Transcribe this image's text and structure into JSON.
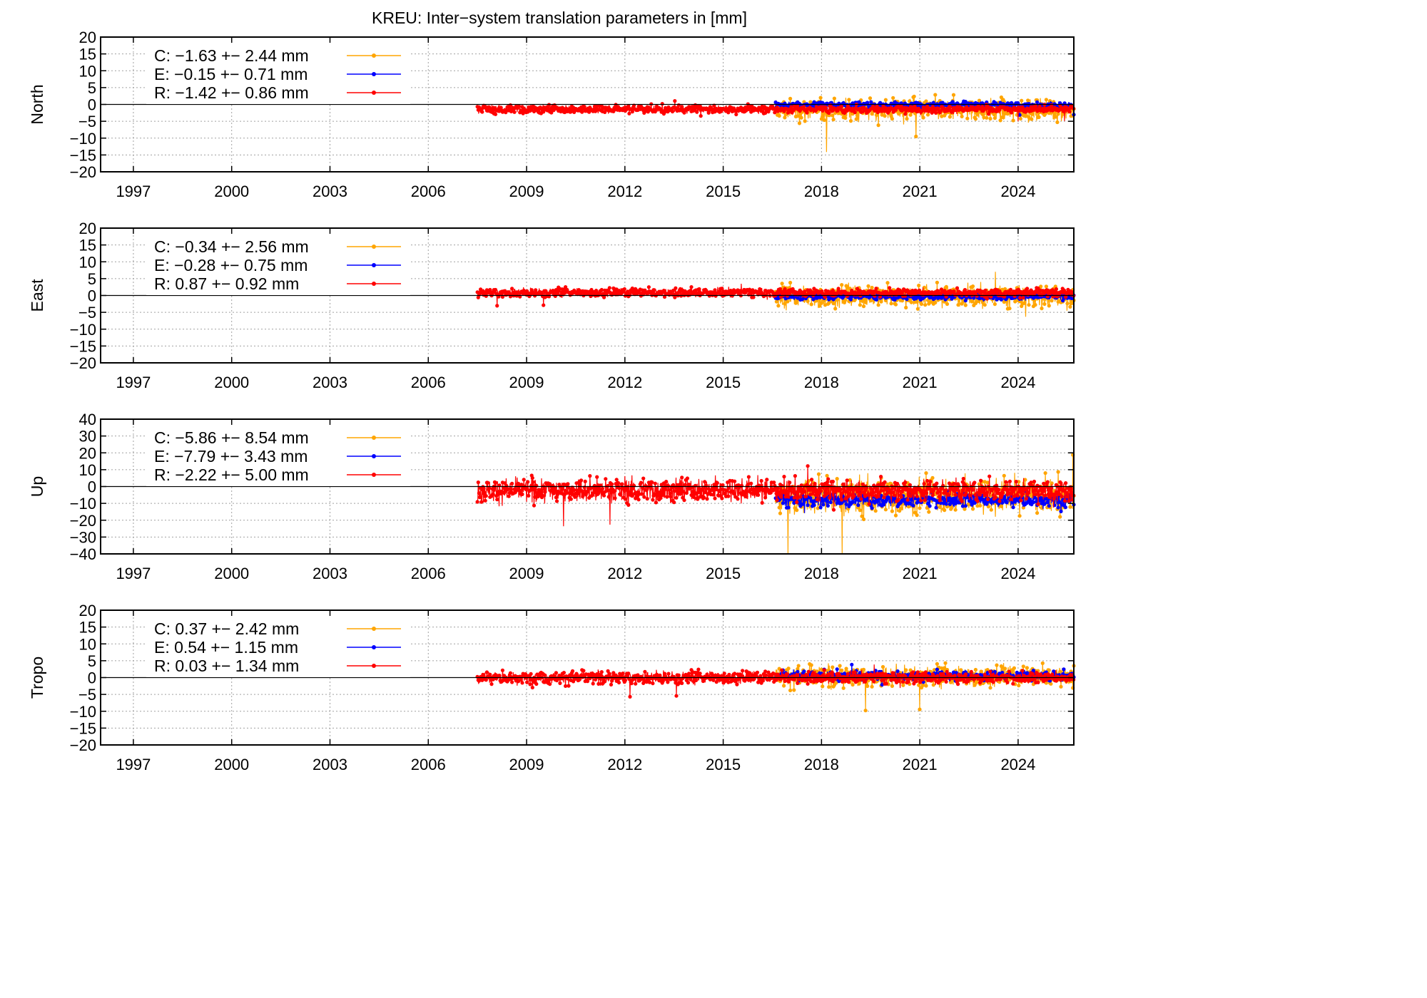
{
  "page": {
    "title": "KREU: Inter−system translation parameters in [mm]"
  },
  "colors": {
    "C": "#ffa500",
    "E": "#0000ff",
    "R": "#ff0000",
    "grid": "#a0a0a0",
    "axis": "#000000"
  },
  "chart_data": [
    {
      "type": "line",
      "ylabel": "North",
      "xlabel": "",
      "xlim": [
        1996,
        2025.7
      ],
      "ylim": [
        -20,
        20
      ],
      "xticks": [
        "1997",
        "2000",
        "2003",
        "2006",
        "2009",
        "2012",
        "2015",
        "2018",
        "2021",
        "2024"
      ],
      "yticks": [
        "20",
        "15",
        "10",
        "5",
        "0",
        "−5",
        "−10",
        "−15",
        "−20"
      ],
      "grid": true,
      "legend_position": "top-left",
      "series": [
        {
          "name": "C",
          "legend": "C:  −1.63 +− 2.44 mm",
          "mean": -1.63,
          "std": 2.44,
          "start": 2016.6,
          "end": 2025.7
        },
        {
          "name": "E",
          "legend": "E:  −0.15 +− 0.71 mm",
          "mean": -0.15,
          "std": 0.71,
          "start": 2016.6,
          "end": 2025.7
        },
        {
          "name": "R",
          "legend": "R:  −1.42 +− 0.86 mm",
          "mean": -1.42,
          "std": 0.86,
          "start": 2007.5,
          "end": 2025.7
        }
      ]
    },
    {
      "type": "line",
      "ylabel": "East",
      "xlabel": "",
      "xlim": [
        1996,
        2025.7
      ],
      "ylim": [
        -20,
        20
      ],
      "xticks": [
        "1997",
        "2000",
        "2003",
        "2006",
        "2009",
        "2012",
        "2015",
        "2018",
        "2021",
        "2024"
      ],
      "yticks": [
        "20",
        "15",
        "10",
        "5",
        "0",
        "−5",
        "−10",
        "−15",
        "−20"
      ],
      "grid": true,
      "legend_position": "top-left",
      "series": [
        {
          "name": "C",
          "legend": "C:  −0.34 +− 2.56 mm",
          "mean": -0.34,
          "std": 2.56,
          "start": 2016.6,
          "end": 2025.7
        },
        {
          "name": "E",
          "legend": "E:  −0.28 +− 0.75 mm",
          "mean": -0.28,
          "std": 0.75,
          "start": 2016.6,
          "end": 2025.7
        },
        {
          "name": "R",
          "legend": "R:   0.87 +− 0.92 mm",
          "mean": 0.87,
          "std": 0.92,
          "start": 2007.5,
          "end": 2025.7
        }
      ]
    },
    {
      "type": "line",
      "ylabel": "Up",
      "xlabel": "",
      "xlim": [
        1996,
        2025.7
      ],
      "ylim": [
        -40,
        40
      ],
      "xticks": [
        "1997",
        "2000",
        "2003",
        "2006",
        "2009",
        "2012",
        "2015",
        "2018",
        "2021",
        "2024"
      ],
      "yticks": [
        "40",
        "30",
        "20",
        "10",
        "0",
        "−10",
        "−20",
        "−30",
        "−40"
      ],
      "grid": true,
      "legend_position": "top-left",
      "series": [
        {
          "name": "C",
          "legend": "C:  −5.86 +− 8.54 mm",
          "mean": -5.86,
          "std": 8.54,
          "start": 2016.6,
          "end": 2025.7
        },
        {
          "name": "E",
          "legend": "E:  −7.79 +− 3.43 mm",
          "mean": -7.79,
          "std": 3.43,
          "start": 2016.6,
          "end": 2025.7
        },
        {
          "name": "R",
          "legend": "R:  −2.22 +− 5.00 mm",
          "mean": -2.22,
          "std": 5.0,
          "start": 2007.5,
          "end": 2025.7
        }
      ]
    },
    {
      "type": "line",
      "ylabel": "Tropo",
      "xlabel": "",
      "xlim": [
        1996,
        2025.7
      ],
      "ylim": [
        -20,
        20
      ],
      "xticks": [
        "1997",
        "2000",
        "2003",
        "2006",
        "2009",
        "2012",
        "2015",
        "2018",
        "2021",
        "2024"
      ],
      "yticks": [
        "20",
        "15",
        "10",
        "5",
        "0",
        "−5",
        "−10",
        "−15",
        "−20"
      ],
      "grid": true,
      "legend_position": "top-left",
      "series": [
        {
          "name": "C",
          "legend": "C:   0.37 +− 2.42 mm",
          "mean": 0.37,
          "std": 2.42,
          "start": 2016.6,
          "end": 2025.7
        },
        {
          "name": "E",
          "legend": "E:   0.54 +− 1.15 mm",
          "mean": 0.54,
          "std": 1.15,
          "start": 2016.6,
          "end": 2025.7
        },
        {
          "name": "R",
          "legend": "R:   0.03 +− 1.34 mm",
          "mean": 0.03,
          "std": 1.34,
          "start": 2007.5,
          "end": 2025.7
        }
      ]
    }
  ]
}
